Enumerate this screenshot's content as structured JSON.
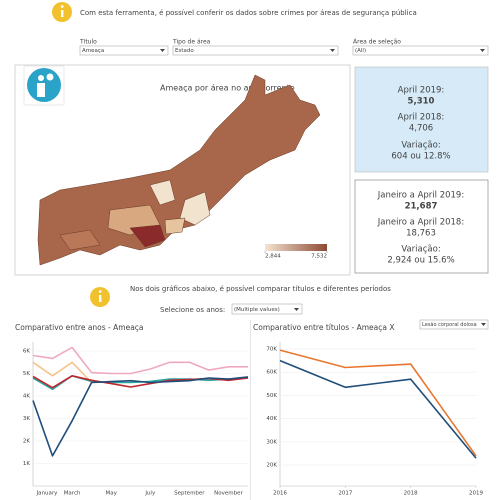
{
  "header": {
    "text": "Com esta ferramenta, é possível conferir os dados sobre crimes por áreas de segurança pública"
  },
  "filters": [
    {
      "label": "Título",
      "value": "Ameaça"
    },
    {
      "label": "Tipo de área",
      "value": "Estado"
    },
    {
      "label": "Área de seleção",
      "value": "(All)"
    }
  ],
  "map": {
    "title": "Ameaça por área no ano corrente",
    "legend": [
      {
        "value": 2844,
        "label": "2,844"
      },
      {
        "value": 7532,
        "label": "7,532"
      }
    ]
  },
  "summary_month": {
    "current_label": "April 2019:",
    "current_value": "5,310",
    "previous_label": "April 2018:",
    "previous_value": "4,706",
    "change_label": "Variação:",
    "change_value": "604 ou 12.8%"
  },
  "summary_ytd": {
    "current_label": "Janeiro a April 2019:",
    "current_value": "21,687",
    "previous_label": "Janeiro a April 2018:",
    "previous_value": "18,763",
    "change_label": "Variação:",
    "change_value": "2,924 ou 15.6%"
  },
  "comparison": {
    "text": "Nos dois gráficos abaixo, é possível comparar títulos e diferentes períodos",
    "year_selector_label": "Selecione os anos:",
    "year_selector_value": "(Multiple values)"
  },
  "chart_data": [
    {
      "type": "line",
      "title": "Comparativo entre anos - Ameaça",
      "categories": [
        "January",
        null,
        "March",
        null,
        "May",
        null,
        "July",
        null,
        "September",
        null,
        "November",
        null
      ],
      "ylim": [
        0,
        6400
      ],
      "yticks": [
        {
          "value": 1000,
          "label": "1K"
        },
        {
          "value": 2000,
          "label": "2K"
        },
        {
          "value": 3000,
          "label": "3K"
        },
        {
          "value": 4000,
          "label": "4K"
        },
        {
          "value": 5000,
          "label": "5K"
        },
        {
          "value": 6000,
          "label": "6K"
        }
      ],
      "grid": true,
      "series": [
        {
          "color": "#f0a8c0",
          "values": [
            5800,
            5670,
            6160,
            5040,
            5000,
            5000,
            5200,
            5500,
            5500,
            5150,
            5300,
            5300
          ]
        },
        {
          "color": "#f5c48a",
          "values": [
            5500,
            4900,
            5500,
            4600,
            null,
            null,
            null,
            null,
            null,
            null,
            null,
            null
          ]
        },
        {
          "color": "#2aa6a0",
          "values": [
            4800,
            4300,
            4900,
            4650,
            4600,
            4600,
            4650,
            4750,
            4750,
            4700,
            4750,
            4800
          ]
        },
        {
          "color": "#c0262e",
          "values": [
            4870,
            4370,
            4900,
            4700,
            4550,
            4400,
            4550,
            4700,
            4730,
            4780,
            4700,
            4800
          ]
        },
        {
          "color": "#1f4e79",
          "values": [
            3800,
            1340,
            2900,
            4600,
            4640,
            4680,
            4600,
            4640,
            4680,
            4800,
            4750,
            4850
          ]
        }
      ]
    },
    {
      "type": "line",
      "title": "Comparativo entre títulos - Ameaça X",
      "selector": "Lesão corporal dolosa",
      "x": [
        2016,
        2017,
        2018,
        2019
      ],
      "xlim": [
        2016,
        2019
      ],
      "xticks": [
        2016,
        2017,
        2018,
        2019
      ],
      "ylim": [
        11000,
        73000
      ],
      "yticks": [
        {
          "value": 20000,
          "label": "20K"
        },
        {
          "value": 30000,
          "label": "30K"
        },
        {
          "value": 40000,
          "label": "40K"
        },
        {
          "value": 50000,
          "label": "50K"
        },
        {
          "value": 60000,
          "label": "60K"
        },
        {
          "value": 70000,
          "label": "70K"
        }
      ],
      "grid": true,
      "series": [
        {
          "color": "#e8772e",
          "values": [
            69500,
            62000,
            63500,
            24000
          ]
        },
        {
          "color": "#1f4e79",
          "values": [
            65000,
            53500,
            57000,
            23000
          ]
        }
      ]
    }
  ]
}
